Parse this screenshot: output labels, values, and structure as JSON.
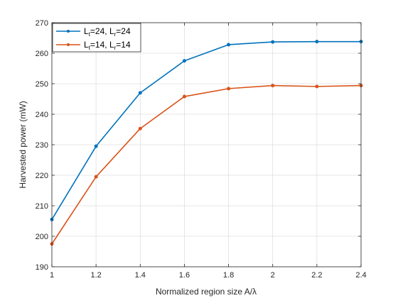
{
  "chart_data": {
    "type": "line",
    "xlabel": "Normalized region size A/λ",
    "ylabel": "Harvested power (mW)",
    "xlim": [
      1,
      2.4
    ],
    "ylim": [
      190,
      270
    ],
    "xticks": [
      "1",
      "1.2",
      "1.4",
      "1.6",
      "1.8",
      "2",
      "2.2",
      "2.4"
    ],
    "yticks": [
      "190",
      "200",
      "210",
      "220",
      "230",
      "240",
      "250",
      "260",
      "270"
    ],
    "grid": true,
    "legend_position": "top-left",
    "x": [
      1,
      1.2,
      1.4,
      1.6,
      1.8,
      2,
      2.2,
      2.4
    ],
    "series": [
      {
        "name": "Lt=24, Lr=24",
        "legend": {
          "a": "L",
          "a_sub": "t",
          "b": "=24, L",
          "b_sub": "r",
          "c": "=24"
        },
        "color": "#0072bd",
        "values": [
          205.5,
          229.5,
          247.0,
          257.5,
          262.8,
          263.7,
          263.8,
          263.8
        ]
      },
      {
        "name": "Lt=14, Lr=14",
        "legend": {
          "a": "L",
          "a_sub": "t",
          "b": "=14, L",
          "b_sub": "r",
          "c": "=14"
        },
        "color": "#d95319",
        "values": [
          197.5,
          219.5,
          235.3,
          245.8,
          248.4,
          249.4,
          249.1,
          249.4
        ]
      }
    ]
  }
}
